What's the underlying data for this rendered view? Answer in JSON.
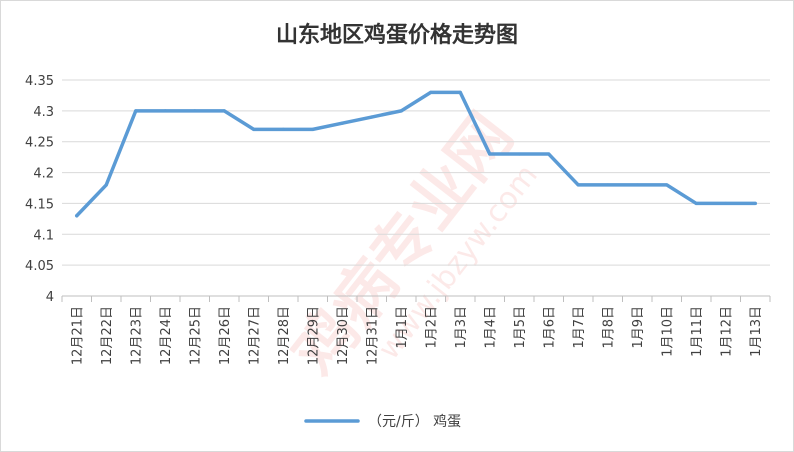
{
  "chart_data": {
    "type": "line",
    "title": "山东地区鸡蛋价格走势图",
    "categories": [
      "12月21日",
      "12月22日",
      "12月23日",
      "12月24日",
      "12月25日",
      "12月26日",
      "12月27日",
      "12月28日",
      "12月29日",
      "12月30日",
      "12月31日",
      "1月1日",
      "1月2日",
      "1月3日",
      "1月4日",
      "1月5日",
      "1月6日",
      "1月7日",
      "1月8日",
      "1月9日",
      "1月10日",
      "1月11日",
      "1月12日",
      "1月13日"
    ],
    "series": [
      {
        "name": "（元/斤） 鸡蛋",
        "color": "#5b9bd5",
        "values": [
          4.13,
          4.18,
          4.3,
          4.3,
          4.3,
          4.3,
          4.27,
          4.27,
          4.27,
          4.28,
          4.29,
          4.3,
          4.33,
          4.33,
          4.23,
          4.23,
          4.23,
          4.18,
          4.18,
          4.18,
          4.18,
          4.15,
          4.15,
          4.15
        ]
      }
    ],
    "y_ticks": [
      "4",
      "4.05",
      "4.1",
      "4.15",
      "4.2",
      "4.25",
      "4.3",
      "4.35"
    ],
    "ylim": [
      4,
      4.35
    ],
    "grid": true,
    "legend_position": "bottom"
  },
  "watermark": {
    "text": "鸡病专业网",
    "url": "www.jbzyw.com"
  }
}
